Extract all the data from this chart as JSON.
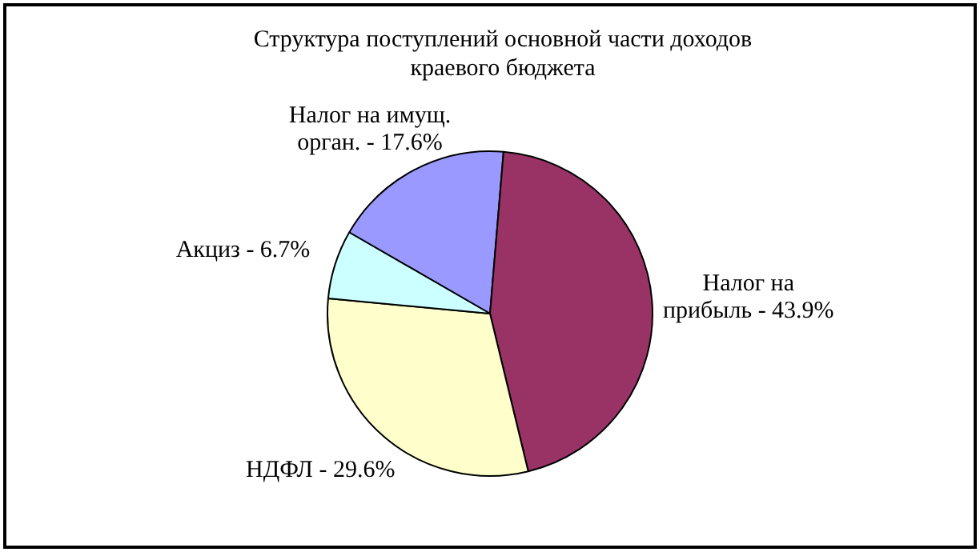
{
  "chart_data": {
    "type": "pie",
    "title": "Структура поступлений основной части доходов краевого бюджета",
    "categories": [
      "Налог на имущ. орган.",
      "Налог на прибыль",
      "НДФЛ",
      "Акциз"
    ],
    "values": [
      17.6,
      43.9,
      29.6,
      6.7
    ],
    "value_labels": [
      "17.6%",
      "43.9%",
      "29.6%",
      "6.7%"
    ],
    "colors": [
      "#9999ff",
      "#993366",
      "#ffffcc",
      "#ccffff"
    ],
    "legend": false
  }
}
